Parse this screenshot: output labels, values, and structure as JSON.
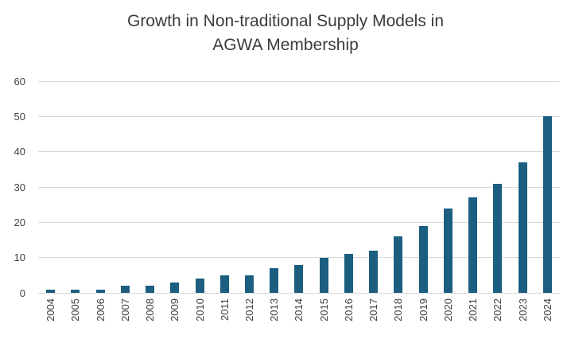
{
  "chart_data": {
    "type": "bar",
    "title": "Growth in Non-traditional Supply Models in AGWA Membership",
    "title_lines": [
      "Growth in Non-traditional Supply Models in",
      "AGWA Membership"
    ],
    "categories": [
      "2004",
      "2005",
      "2006",
      "2007",
      "2008",
      "2009",
      "2010",
      "2011",
      "2012",
      "2013",
      "2014",
      "2015",
      "2016",
      "2017",
      "2018",
      "2019",
      "2020",
      "2021",
      "2022",
      "2023",
      "2024"
    ],
    "values": [
      1,
      1,
      1,
      2,
      2,
      3,
      4,
      5,
      5,
      7,
      8,
      10,
      11,
      12,
      16,
      19,
      24,
      27,
      31,
      37,
      50
    ],
    "xlabel": "",
    "ylabel": "",
    "ylim": [
      0,
      60
    ],
    "yticks": [
      0,
      10,
      20,
      30,
      40,
      50,
      60
    ],
    "grid": true,
    "legend_position": "none",
    "bar_color": "#1b5e80",
    "gridline_color": "#d9d9d9",
    "tick_label_color": "#404040",
    "title_color": "#3b3b3b"
  }
}
